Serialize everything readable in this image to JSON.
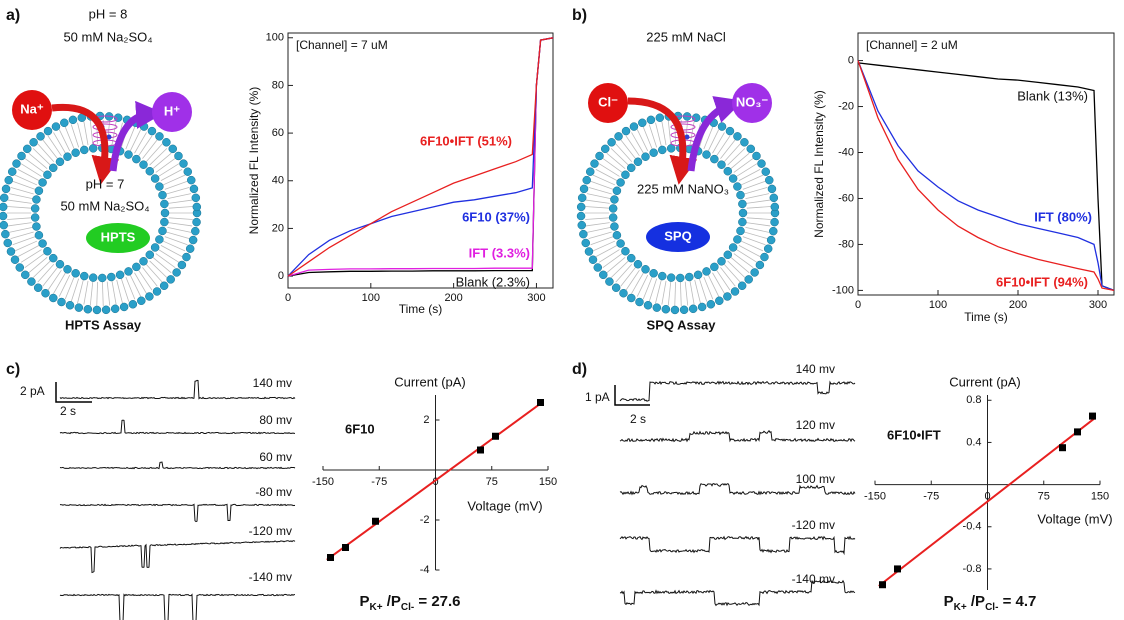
{
  "panels": {
    "a": "a)",
    "b": "b)",
    "c": "c)",
    "d": "d)"
  },
  "diagrams": [
    {
      "outside": [
        "pH = 8",
        "50  mM Na₂SO₄"
      ],
      "inside": [
        "pH = 7",
        "50  mM Na₂SO₄"
      ],
      "ion_in": "Na⁺",
      "ion_out": "H⁺",
      "dye": "HPTS",
      "title": "HPTS Assay"
    },
    {
      "outside": [
        "225 mM NaCl"
      ],
      "inside": [
        "225 mM NaNO₃"
      ],
      "ion_in": "Cl⁻",
      "ion_out": "NO₃⁻",
      "dye": "SPQ",
      "title": "SPQ Assay"
    }
  ],
  "traces": [
    {
      "current_scale": "2 pA",
      "time_scale": "2 s",
      "voltages": [
        "140 mv",
        "80 mv",
        "60 mv",
        "-80 mv",
        "-120 mv",
        "-140 mv"
      ]
    },
    {
      "current_scale": "1 pA",
      "time_scale": "2 s",
      "voltages": [
        "140 mv",
        "120 mv",
        "100 mv",
        "-120 mv",
        "-140 mv"
      ]
    }
  ],
  "chart_data": [
    {
      "type": "line",
      "annotation": "[Channel] = 7 uM",
      "xlabel": "Time (s)",
      "ylabel": "Normalized FL Intensity (%)",
      "x": [
        0,
        25,
        50,
        75,
        100,
        125,
        150,
        175,
        200,
        225,
        250,
        275,
        295,
        300,
        305,
        320
      ],
      "xlim": [
        0,
        320
      ],
      "xticks": [
        0,
        100,
        200,
        300
      ],
      "ylim": [
        -5,
        102
      ],
      "yticks": [
        0,
        20,
        40,
        60,
        80,
        100
      ],
      "series": [
        {
          "name": "Blank (2.3%)",
          "color": "#000000",
          "values": [
            0,
            1.5,
            1.8,
            2,
            2,
            2.1,
            2.1,
            2.2,
            2.2,
            2.2,
            2.3,
            2.3,
            2.3,
            80,
            99,
            100
          ]
        },
        {
          "name": "IFT (3.3%)",
          "color": "#e020e0",
          "values": [
            0,
            2.5,
            2.8,
            3,
            3,
            3.1,
            3.1,
            3.2,
            3.2,
            3.2,
            3.3,
            3.3,
            3.3,
            80,
            99,
            100
          ]
        },
        {
          "name": "6F10 (37%)",
          "color": "#2030e0",
          "values": [
            0,
            9,
            15,
            19,
            22,
            25,
            27,
            29,
            31,
            32,
            33.5,
            35,
            37,
            80,
            99,
            100
          ]
        },
        {
          "name": "6F10•IFT (51%)",
          "color": "#e82020",
          "values": [
            0,
            6,
            12,
            17,
            22,
            27,
            31,
            35,
            39,
            42,
            45,
            48,
            51,
            80,
            99,
            100
          ]
        }
      ]
    },
    {
      "type": "line",
      "annotation": "[Channel] = 2 uM",
      "xlabel": "Time (s)",
      "ylabel": "Normalized FL Intensity (%)",
      "x": [
        0,
        25,
        50,
        75,
        100,
        125,
        150,
        175,
        200,
        225,
        250,
        275,
        295,
        300,
        305,
        320
      ],
      "xlim": [
        0,
        320
      ],
      "xticks": [
        0,
        100,
        200,
        300
      ],
      "ylim": [
        -102,
        12
      ],
      "yticks": [
        0,
        -20,
        -40,
        -60,
        -80,
        -100
      ],
      "series": [
        {
          "name": "Blank (13%)",
          "color": "#000000",
          "values": [
            -1,
            -2,
            -3,
            -4,
            -5,
            -6,
            -7,
            -8,
            -8.5,
            -9.5,
            -10.5,
            -11.5,
            -13,
            -60,
            -98,
            -100
          ]
        },
        {
          "name": "IFT (80%)",
          "color": "#2030e0",
          "values": [
            0,
            -22,
            -37,
            -48,
            -55,
            -61,
            -65,
            -68,
            -71,
            -73,
            -75,
            -77,
            -80,
            -88,
            -98,
            -100
          ]
        },
        {
          "name": "6F10•IFT (94%)",
          "color": "#e82020",
          "values": [
            0,
            -25,
            -43,
            -56,
            -65,
            -72,
            -77,
            -81,
            -84,
            -86.5,
            -88.5,
            -90.5,
            -92,
            -95,
            -99,
            -100
          ]
        }
      ]
    },
    {
      "type": "scatter",
      "annotation": "6F10",
      "xlabel": "Voltage (mV)",
      "ylabel": "Current (pA)",
      "x": [
        -140,
        -120,
        -80,
        60,
        80,
        140
      ],
      "values": [
        -3.5,
        -3.1,
        -2.05,
        0.8,
        1.35,
        2.7
      ],
      "color": "#000000",
      "fit_color": "#e82020",
      "xlim": [
        -150,
        150
      ],
      "xticks": [
        -150,
        -75,
        0,
        75,
        150
      ],
      "ylim": [
        -4,
        3
      ],
      "yticks": [
        -4,
        -2,
        2
      ],
      "ratio": [
        {
          "text": "P"
        },
        {
          "text": "K+",
          "sub": true
        },
        {
          "text": " /P"
        },
        {
          "text": "Cl-",
          "sub": true
        },
        {
          "text": " = 27.6"
        }
      ]
    },
    {
      "type": "scatter",
      "annotation": "6F10•IFT",
      "xlabel": "Voltage (mV)",
      "ylabel": "Current (pA)",
      "x": [
        -140,
        -120,
        100,
        120,
        140
      ],
      "values": [
        -0.95,
        -0.8,
        0.35,
        0.5,
        0.65
      ],
      "color": "#000000",
      "fit_color": "#e82020",
      "xlim": [
        -150,
        150
      ],
      "xticks": [
        -150,
        -75,
        0,
        75,
        150
      ],
      "ylim": [
        -1.0,
        0.85
      ],
      "yticks": [
        -0.8,
        -0.4,
        0.4,
        0.8
      ],
      "ratio": [
        {
          "text": "P"
        },
        {
          "text": "K+",
          "sub": true
        },
        {
          "text": " /P"
        },
        {
          "text": "Cl-",
          "sub": true
        },
        {
          "text": "  = 4.7"
        }
      ]
    }
  ]
}
